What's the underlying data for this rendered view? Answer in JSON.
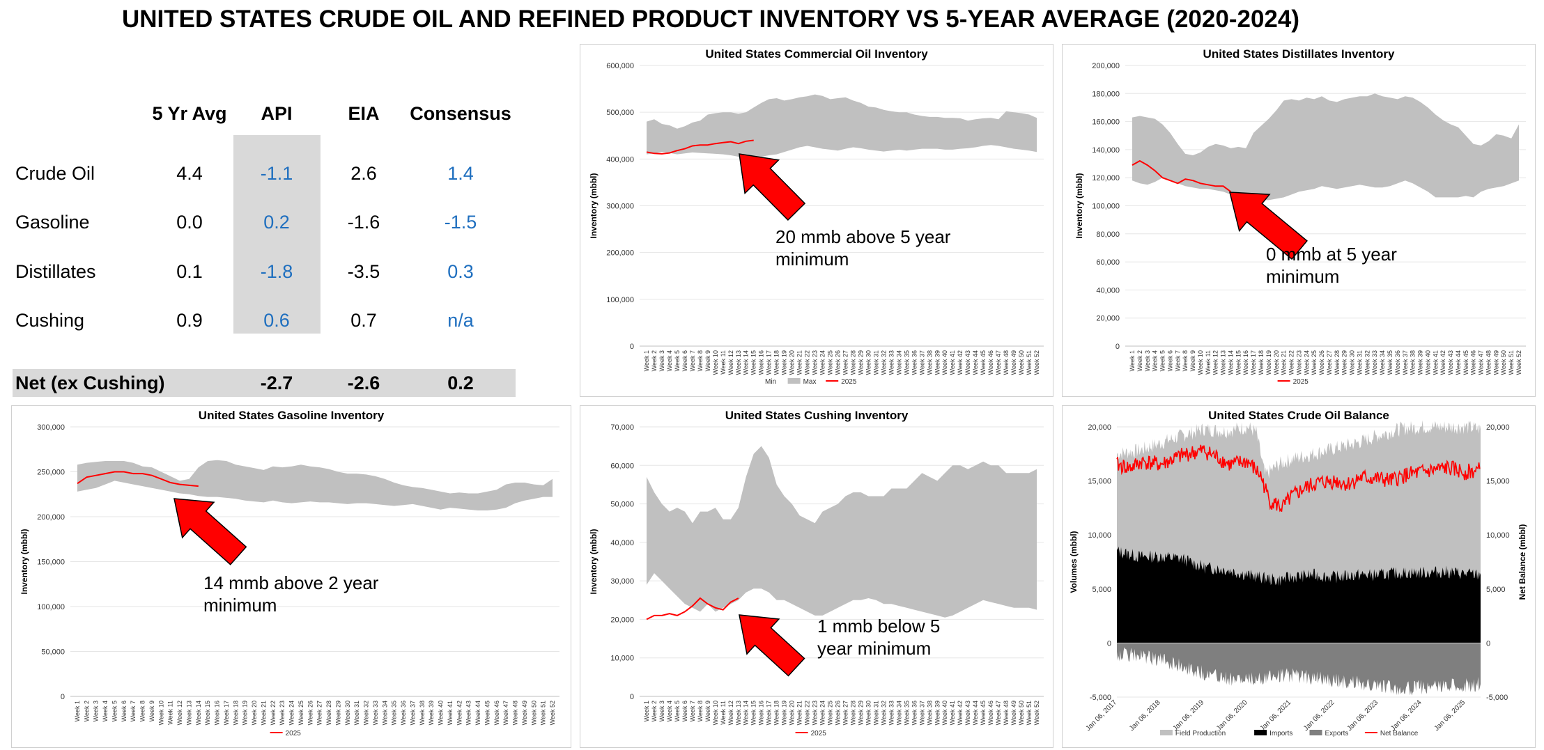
{
  "page_title": "UNITED STATES CRUDE OIL AND REFINED PRODUCT INVENTORY VS 5-YEAR AVERAGE (2020-2024)",
  "summary_table": {
    "headers": [
      "5 Yr Avg",
      "API",
      "EIA",
      "Consensus"
    ],
    "rows": [
      {
        "label": "Crude Oil",
        "values": [
          "4.4",
          "-1.1",
          "2.6",
          "1.4"
        ]
      },
      {
        "label": "Gasoline",
        "values": [
          "0.0",
          "0.2",
          "-1.6",
          "-1.5"
        ]
      },
      {
        "label": "Distillates",
        "values": [
          "0.1",
          "-1.8",
          "-3.5",
          "0.3"
        ]
      },
      {
        "label": "Cushing",
        "values": [
          "0.9",
          "0.6",
          "0.7",
          "n/a"
        ]
      }
    ],
    "net": {
      "label": "Net (ex Cushing)",
      "api": "-2.7",
      "eia": "-2.6",
      "consensus": "0.2"
    },
    "colors": {
      "highlight": "#1f6fbf",
      "shade": "#d9d9d9"
    }
  },
  "chart_data": [
    {
      "id": "commercial",
      "type": "area",
      "title": "United States Commercial Oil Inventory",
      "ylabel": "Inventory (mbbl)",
      "ylim": [
        0,
        600000
      ],
      "yticks": [
        0,
        100000,
        200000,
        300000,
        400000,
        500000,
        600000
      ],
      "yticklabels": [
        "0",
        "100,000",
        "200,000",
        "300,000",
        "400,000",
        "500,000",
        "600,000"
      ],
      "xprefix": "Week ",
      "weeks": 52,
      "band_min": [
        410000,
        412000,
        415000,
        413000,
        410000,
        412000,
        414000,
        413000,
        412000,
        411000,
        410000,
        408000,
        405000,
        404000,
        405000,
        405000,
        408000,
        410000,
        415000,
        420000,
        425000,
        428000,
        425000,
        422000,
        420000,
        418000,
        422000,
        425000,
        423000,
        420000,
        418000,
        416000,
        418000,
        420000,
        418000,
        420000,
        422000,
        422000,
        422000,
        420000,
        420000,
        422000,
        423000,
        425000,
        428000,
        430000,
        428000,
        425000,
        422000,
        420000,
        418000,
        415000
      ],
      "band_max": [
        480000,
        485000,
        475000,
        472000,
        465000,
        470000,
        478000,
        482000,
        495000,
        498000,
        500000,
        500000,
        497000,
        500000,
        510000,
        520000,
        528000,
        530000,
        525000,
        528000,
        532000,
        534000,
        538000,
        535000,
        528000,
        530000,
        532000,
        525000,
        520000,
        512000,
        510000,
        505000,
        502000,
        500000,
        500000,
        495000,
        492000,
        490000,
        490000,
        488000,
        488000,
        487000,
        482000,
        485000,
        487000,
        488000,
        485000,
        502000,
        500000,
        498000,
        495000,
        488000
      ],
      "series": [
        {
          "name": "2025",
          "color": "#ff0000",
          "values": [
            415000,
            412000,
            411000,
            413000,
            418000,
            422000,
            428000,
            430000,
            430000,
            433000,
            435000,
            437000,
            433000,
            438000,
            440000
          ]
        }
      ],
      "legend": [
        {
          "label": "Min",
          "kind": "none"
        },
        {
          "label": "Max",
          "kind": "area",
          "color": "#c0c0c0"
        },
        {
          "label": "2025",
          "kind": "line",
          "color": "#ff0000"
        }
      ],
      "annotation": {
        "lines": [
          "20 mmb above 5 year",
          "minimum"
        ]
      }
    },
    {
      "id": "distillates",
      "type": "area",
      "title": "United States Distillates Inventory",
      "ylabel": "Inventory (mbbl)",
      "ylim": [
        0,
        200000
      ],
      "yticks": [
        0,
        20000,
        40000,
        60000,
        80000,
        100000,
        120000,
        140000,
        160000,
        180000,
        200000
      ],
      "yticklabels": [
        "0",
        "20,000",
        "40,000",
        "60,000",
        "80,000",
        "100,000",
        "120,000",
        "140,000",
        "160,000",
        "180,000",
        "200,000"
      ],
      "xprefix": "Week ",
      "weeks": 52,
      "band_min": [
        118000,
        116000,
        115000,
        117000,
        120000,
        118000,
        116000,
        114000,
        113000,
        112000,
        112000,
        111000,
        110000,
        108000,
        106000,
        105000,
        104000,
        104000,
        104000,
        105000,
        106000,
        108000,
        110000,
        111000,
        112000,
        114000,
        113000,
        112000,
        113000,
        114000,
        115000,
        114000,
        113000,
        113000,
        114000,
        116000,
        118000,
        116000,
        113000,
        110000,
        106000,
        106000,
        106000,
        106000,
        107000,
        106000,
        110000,
        112000,
        113000,
        114000,
        116000,
        118000
      ],
      "band_max": [
        163000,
        164000,
        163000,
        162000,
        158000,
        152000,
        144000,
        137000,
        136000,
        138000,
        142000,
        144000,
        143000,
        141000,
        142000,
        141000,
        152000,
        157000,
        162000,
        168000,
        175000,
        176000,
        175000,
        177000,
        176000,
        178000,
        175000,
        174000,
        176000,
        177000,
        178000,
        178000,
        180000,
        178000,
        177000,
        176000,
        178000,
        177000,
        174000,
        170000,
        165000,
        161000,
        158000,
        156000,
        150000,
        144000,
        143000,
        146000,
        151000,
        150000,
        148000,
        158000
      ],
      "series": [
        {
          "name": "2025",
          "color": "#ff0000",
          "values": [
            129000,
            132000,
            129000,
            125000,
            120000,
            118000,
            116000,
            119000,
            118000,
            116000,
            115000,
            114000,
            114000,
            110000
          ]
        }
      ],
      "legend": [
        {
          "label": "2025",
          "kind": "line",
          "color": "#ff0000"
        }
      ],
      "annotation": {
        "lines": [
          "0 mmb at 5 year",
          "minimum"
        ]
      }
    },
    {
      "id": "gasoline",
      "type": "area",
      "title": "United States Gasoline Inventory",
      "ylabel": "Inventory (mbbl)",
      "ylim": [
        0,
        300000
      ],
      "yticks": [
        0,
        50000,
        100000,
        150000,
        200000,
        250000,
        300000
      ],
      "yticklabels": [
        "0",
        "50,000",
        "100,000",
        "150,000",
        "200,000",
        "250,000",
        "300,000"
      ],
      "xprefix": "Week ",
      "weeks": 52,
      "band_min": [
        228000,
        230000,
        232000,
        236000,
        240000,
        238000,
        236000,
        234000,
        232000,
        230000,
        228000,
        226000,
        225000,
        223000,
        222000,
        222000,
        221000,
        220000,
        218000,
        217000,
        216000,
        218000,
        216000,
        215000,
        216000,
        217000,
        216000,
        216000,
        215000,
        214000,
        215000,
        215000,
        214000,
        213000,
        212000,
        213000,
        214000,
        212000,
        210000,
        208000,
        210000,
        209000,
        208000,
        207000,
        207000,
        208000,
        210000,
        215000,
        218000,
        220000,
        222000,
        222000
      ],
      "band_max": [
        258000,
        260000,
        261000,
        262000,
        262000,
        262000,
        260000,
        256000,
        255000,
        250000,
        245000,
        240000,
        242000,
        255000,
        262000,
        263000,
        262000,
        258000,
        256000,
        254000,
        252000,
        256000,
        255000,
        256000,
        258000,
        256000,
        255000,
        253000,
        250000,
        248000,
        248000,
        247000,
        245000,
        242000,
        238000,
        235000,
        233000,
        232000,
        230000,
        228000,
        226000,
        227000,
        226000,
        226000,
        228000,
        230000,
        236000,
        238000,
        238000,
        236000,
        235000,
        242000
      ],
      "series": [
        {
          "name": "2025",
          "color": "#ff0000",
          "values": [
            237000,
            244000,
            246000,
            248000,
            250000,
            250000,
            248000,
            248000,
            246000,
            242000,
            238000,
            236000,
            235000,
            234000
          ]
        }
      ],
      "legend": [
        {
          "label": "2025",
          "kind": "line",
          "color": "#ff0000"
        }
      ],
      "annotation": {
        "lines": [
          "14 mmb above 2 year",
          "minimum"
        ]
      }
    },
    {
      "id": "cushing",
      "type": "area",
      "title": "United States Cushing Inventory",
      "ylabel": "Inventory (mbbl)",
      "ylim": [
        0,
        70000
      ],
      "yticks": [
        0,
        10000,
        20000,
        30000,
        40000,
        50000,
        60000,
        70000
      ],
      "yticklabels": [
        "0",
        "10,000",
        "20,000",
        "30,000",
        "40,000",
        "50,000",
        "60,000",
        "70,000"
      ],
      "xprefix": "Week ",
      "weeks": 52,
      "band_min": [
        29000,
        32000,
        30000,
        28000,
        26000,
        24000,
        23000,
        22000,
        24000,
        22000,
        23000,
        24000,
        25000,
        27000,
        28000,
        28000,
        27000,
        25000,
        25000,
        24000,
        23000,
        22000,
        21000,
        21000,
        22000,
        23000,
        24000,
        25000,
        25000,
        25500,
        25000,
        24000,
        24000,
        23500,
        23000,
        22500,
        22000,
        21500,
        21000,
        20500,
        21000,
        22000,
        23000,
        24000,
        25000,
        24500,
        24000,
        23500,
        23000,
        23000,
        23000,
        22500
      ],
      "band_max": [
        57000,
        53000,
        50000,
        48000,
        49000,
        48000,
        45000,
        48000,
        48000,
        49000,
        46000,
        46000,
        49000,
        57000,
        63000,
        65000,
        62000,
        55000,
        52000,
        50000,
        47000,
        46000,
        45000,
        48000,
        49000,
        50000,
        52000,
        53000,
        53000,
        52000,
        52000,
        52000,
        54000,
        54000,
        54000,
        56000,
        58000,
        57000,
        56000,
        58000,
        60000,
        60000,
        59000,
        60000,
        61000,
        60000,
        60000,
        58000,
        58000,
        58000,
        58000,
        59000
      ],
      "series": [
        {
          "name": "2025",
          "color": "#ff0000",
          "values": [
            20000,
            21000,
            21000,
            21500,
            21000,
            22000,
            23500,
            25500,
            24000,
            23000,
            22500,
            24500,
            25500
          ]
        }
      ],
      "legend": [
        {
          "label": "2025",
          "kind": "line",
          "color": "#ff0000"
        }
      ],
      "annotation": {
        "lines": [
          "1 mmb below 5",
          "year minimum"
        ]
      }
    },
    {
      "id": "balance",
      "type": "area",
      "title": "United States Crude Oil Balance",
      "ylabel": "Volumes (mbbl)",
      "y2label": "Net Balance (mbbl)",
      "ylim": [
        -5000,
        20000
      ],
      "yticks": [
        -5000,
        0,
        5000,
        10000,
        15000,
        20000
      ],
      "yticklabels": [
        "-5,000",
        "0",
        "5,000",
        "10,000",
        "15,000",
        "20,000"
      ],
      "xticklabels": [
        "Jan 06, 2017",
        "Jan 06, 2018",
        "Jan 06, 2019",
        "Jan 06, 2020",
        "Jan 06, 2021",
        "Jan 06, 2022",
        "Jan 06, 2023",
        "Jan 06, 2024",
        "Jan 06, 2025"
      ],
      "x_start": 2017.0,
      "x_end": 2025.35,
      "field_production": [
        [
          2017.0,
          17500
        ],
        [
          2017.5,
          17800
        ],
        [
          2018.0,
          18500
        ],
        [
          2018.5,
          19200
        ],
        [
          2019.0,
          19800
        ],
        [
          2019.5,
          19600
        ],
        [
          2020.0,
          20000
        ],
        [
          2020.2,
          19500
        ],
        [
          2020.4,
          15500
        ],
        [
          2020.7,
          16500
        ],
        [
          2021.0,
          17000
        ],
        [
          2021.5,
          17500
        ],
        [
          2022.0,
          18000
        ],
        [
          2022.5,
          18500
        ],
        [
          2023.0,
          19200
        ],
        [
          2023.5,
          19800
        ],
        [
          2024.0,
          20000
        ],
        [
          2024.5,
          20000
        ],
        [
          2025.0,
          20000
        ],
        [
          2025.35,
          19800
        ]
      ],
      "imports": [
        [
          2017.0,
          8500
        ],
        [
          2017.5,
          8000
        ],
        [
          2018.0,
          8000
        ],
        [
          2018.5,
          7800
        ],
        [
          2019.0,
          7000
        ],
        [
          2019.5,
          6800
        ],
        [
          2020.0,
          6300
        ],
        [
          2020.4,
          6000
        ],
        [
          2020.7,
          5800
        ],
        [
          2021.0,
          6100
        ],
        [
          2021.5,
          6300
        ],
        [
          2022.0,
          6100
        ],
        [
          2022.5,
          6300
        ],
        [
          2023.0,
          6300
        ],
        [
          2023.5,
          6500
        ],
        [
          2024.0,
          6500
        ],
        [
          2024.5,
          6600
        ],
        [
          2025.0,
          6400
        ],
        [
          2025.35,
          6300
        ]
      ],
      "exports": [
        [
          2017.0,
          -1000
        ],
        [
          2017.5,
          -1200
        ],
        [
          2018.0,
          -1600
        ],
        [
          2018.5,
          -2100
        ],
        [
          2019.0,
          -2800
        ],
        [
          2019.5,
          -3200
        ],
        [
          2020.0,
          -3500
        ],
        [
          2020.5,
          -3000
        ],
        [
          2021.0,
          -3000
        ],
        [
          2021.5,
          -3200
        ],
        [
          2022.0,
          -3500
        ],
        [
          2022.5,
          -3700
        ],
        [
          2023.0,
          -4000
        ],
        [
          2023.5,
          -4200
        ],
        [
          2024.0,
          -4100
        ],
        [
          2024.5,
          -4000
        ],
        [
          2025.0,
          -3900
        ],
        [
          2025.35,
          -3800
        ]
      ],
      "net_balance": [
        [
          2017.0,
          16500
        ],
        [
          2017.3,
          16200
        ],
        [
          2017.6,
          16800
        ],
        [
          2018.0,
          16500
        ],
        [
          2018.3,
          17000
        ],
        [
          2018.6,
          17500
        ],
        [
          2019.0,
          17800
        ],
        [
          2019.3,
          17200
        ],
        [
          2019.6,
          16500
        ],
        [
          2020.0,
          16800
        ],
        [
          2020.3,
          15500
        ],
        [
          2020.5,
          13200
        ],
        [
          2020.8,
          12500
        ],
        [
          2021.0,
          13500
        ],
        [
          2021.3,
          14300
        ],
        [
          2021.6,
          14800
        ],
        [
          2022.0,
          15000
        ],
        [
          2022.3,
          14700
        ],
        [
          2022.6,
          15300
        ],
        [
          2023.0,
          15200
        ],
        [
          2023.3,
          15000
        ],
        [
          2023.6,
          15500
        ],
        [
          2024.0,
          15800
        ],
        [
          2024.3,
          16000
        ],
        [
          2024.6,
          16200
        ],
        [
          2025.0,
          15800
        ],
        [
          2025.35,
          16000
        ]
      ],
      "colors": {
        "field_production": "#c0c0c0",
        "imports": "#000000",
        "exports": "#7f7f7f",
        "net_balance": "#ff0000"
      },
      "legend": [
        {
          "label": "Field Production",
          "kind": "area",
          "color": "#c0c0c0"
        },
        {
          "label": "Imports",
          "kind": "area",
          "color": "#000000"
        },
        {
          "label": "Exports",
          "kind": "area",
          "color": "#7f7f7f"
        },
        {
          "label": "Net Balance",
          "kind": "line",
          "color": "#ff0000"
        }
      ]
    }
  ]
}
